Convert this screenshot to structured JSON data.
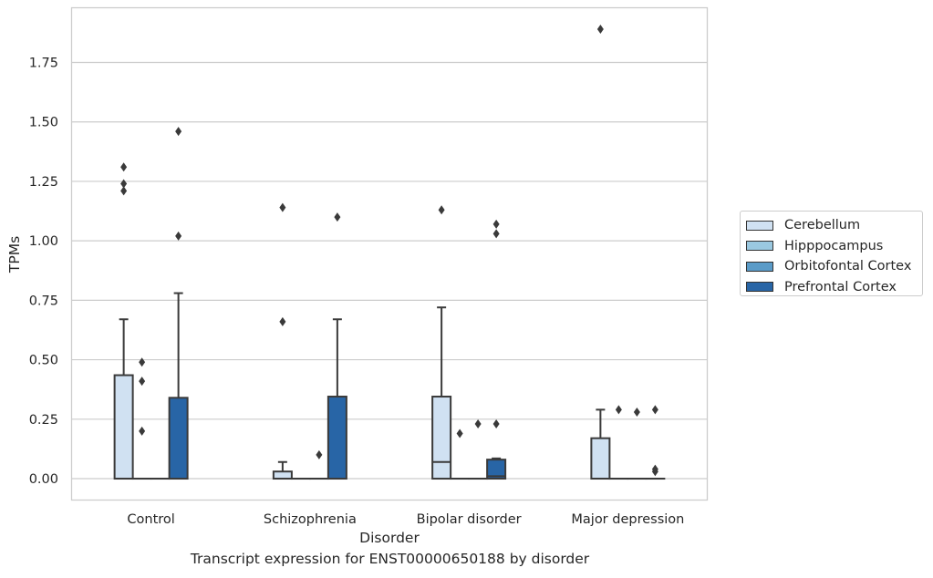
{
  "caption": "Transcript expression for ENST00000650188 by disorder",
  "chart_data": {
    "type": "box",
    "xlabel": "Disorder",
    "ylabel": "TPMs",
    "ylim": [
      -0.09,
      1.98
    ],
    "yticks": [
      0.0,
      0.25,
      0.5,
      0.75,
      1.0,
      1.25,
      1.5,
      1.75
    ],
    "ytick_labels": [
      "0.00",
      "0.25",
      "0.50",
      "0.75",
      "1.00",
      "1.25",
      "1.50",
      "1.75"
    ],
    "categories": [
      "Control",
      "Schizophrenia",
      "Bipolar disorder",
      "Major depression"
    ],
    "grid": "horizontal",
    "legend_position": "outside-right",
    "series": [
      {
        "name": "Cerebellum",
        "color": "#d0e1f2",
        "boxes": [
          {
            "min": 0.0,
            "q1": 0.0,
            "median": 0.0,
            "q3": 0.435,
            "max": 0.67,
            "outliers": [
              1.21,
              1.24,
              1.31
            ]
          },
          {
            "min": 0.0,
            "q1": 0.0,
            "median": 0.0,
            "q3": 0.03,
            "max": 0.07,
            "outliers": [
              0.66,
              1.14
            ]
          },
          {
            "min": 0.0,
            "q1": 0.0,
            "median": 0.07,
            "q3": 0.345,
            "max": 0.72,
            "outliers": [
              1.13
            ]
          },
          {
            "min": 0.0,
            "q1": 0.0,
            "median": 0.0,
            "q3": 0.17,
            "max": 0.29,
            "outliers": [
              1.89
            ]
          }
        ]
      },
      {
        "name": "Hipppocampus",
        "color": "#9ac8e0",
        "boxes": [
          {
            "min": 0.0,
            "q1": 0.0,
            "median": 0.0,
            "q3": 0.0,
            "max": 0.0,
            "outliers": [
              0.2,
              0.41,
              0.49
            ]
          },
          {
            "min": 0.0,
            "q1": 0.0,
            "median": 0.0,
            "q3": 0.0,
            "max": 0.0,
            "outliers": []
          },
          {
            "min": 0.0,
            "q1": 0.0,
            "median": 0.0,
            "q3": 0.0,
            "max": 0.0,
            "outliers": [
              0.19
            ]
          },
          {
            "min": 0.0,
            "q1": 0.0,
            "median": 0.0,
            "q3": 0.0,
            "max": 0.0,
            "outliers": [
              0.29
            ]
          }
        ]
      },
      {
        "name": "Orbitofontal Cortex",
        "color": "#5a9bc8",
        "boxes": [
          {
            "min": 0.0,
            "q1": 0.0,
            "median": 0.0,
            "q3": 0.0,
            "max": 0.0,
            "outliers": []
          },
          {
            "min": 0.0,
            "q1": 0.0,
            "median": 0.0,
            "q3": 0.0,
            "max": 0.0,
            "outliers": [
              0.1
            ]
          },
          {
            "min": 0.0,
            "q1": 0.0,
            "median": 0.0,
            "q3": 0.0,
            "max": 0.0,
            "outliers": [
              0.23
            ]
          },
          {
            "min": 0.0,
            "q1": 0.0,
            "median": 0.0,
            "q3": 0.0,
            "max": 0.0,
            "outliers": [
              0.28
            ]
          }
        ]
      },
      {
        "name": "Prefrontal Cortex",
        "color": "#2865a6",
        "boxes": [
          {
            "min": 0.0,
            "q1": 0.0,
            "median": 0.0,
            "q3": 0.34,
            "max": 0.78,
            "outliers": [
              1.02,
              1.46
            ]
          },
          {
            "min": 0.0,
            "q1": 0.0,
            "median": 0.0,
            "q3": 0.345,
            "max": 0.67,
            "outliers": [
              1.1
            ]
          },
          {
            "min": 0.0,
            "q1": 0.0,
            "median": 0.01,
            "q3": 0.08,
            "max": 0.085,
            "outliers": [
              0.23,
              1.03,
              1.07
            ]
          },
          {
            "min": 0.0,
            "q1": 0.0,
            "median": 0.0,
            "q3": 0.0,
            "max": 0.0,
            "outliers": [
              0.03,
              0.04,
              0.29
            ]
          }
        ]
      }
    ]
  }
}
